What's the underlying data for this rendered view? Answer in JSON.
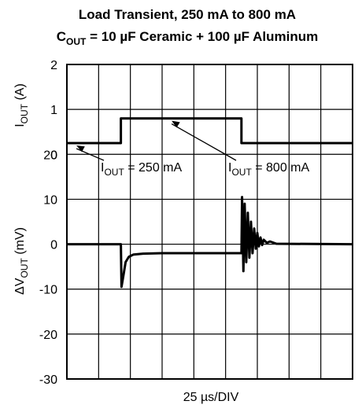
{
  "chart_data": {
    "type": "line",
    "title_line1": "Load Transient, 250 mA to 800 mA",
    "title_line2_prefix": "C",
    "title_line2_sub": "OUT",
    "title_line2_rest": " = 10 µF Ceramic + 100 µF Aluminum",
    "xlabel": "25 µs/DIV",
    "x_divisions": 8,
    "top_panel": {
      "ylabel_main": "I",
      "ylabel_sub": "OUT",
      "ylabel_unit": " (A)",
      "ylim": [
        0,
        2
      ],
      "yticks": [
        "2",
        "1",
        "0"
      ],
      "series": {
        "name": "I_OUT",
        "x_div": [
          0,
          1.7,
          1.7,
          5.5,
          5.5,
          9
        ],
        "values": [
          0.25,
          0.25,
          0.8,
          0.8,
          0.25,
          0.25
        ]
      },
      "annotations": [
        {
          "prefix": "I",
          "sub": "OUT",
          "rest": " = 250 mA",
          "target_x_div": 0.3,
          "target_y": 0.25
        },
        {
          "prefix": "I",
          "sub": "OUT",
          "rest": " = 800 mA",
          "target_x_div": 3.3,
          "target_y": 0.8
        }
      ]
    },
    "bottom_panel": {
      "ylabel_prefix": "ΔV",
      "ylabel_sub": "OUT",
      "ylabel_unit": " (mV)",
      "ylim": [
        -30,
        20
      ],
      "yticks": [
        "20",
        "10",
        "0",
        "-10",
        "-20",
        "-30"
      ],
      "series": {
        "name": "ΔV_OUT",
        "x_div": [
          0,
          1.7,
          1.72,
          1.78,
          1.85,
          1.95,
          2.1,
          2.4,
          3.0,
          5.5,
          5.52,
          5.56,
          5.6,
          5.65,
          5.7,
          5.75,
          5.8,
          5.85,
          5.9,
          5.95,
          6.0,
          6.05,
          6.1,
          6.15,
          6.2,
          6.3,
          6.4,
          6.6,
          9
        ],
        "values": [
          0,
          0,
          -9.5,
          -7,
          -4,
          -2.8,
          -2.3,
          -2.1,
          -2.0,
          -2.0,
          10.5,
          -6,
          9,
          -4,
          7,
          -3,
          5,
          -2,
          3.5,
          -1,
          2.5,
          -0.5,
          1.5,
          -0.2,
          1,
          0.3,
          0.6,
          0.1,
          0
        ]
      }
    }
  }
}
